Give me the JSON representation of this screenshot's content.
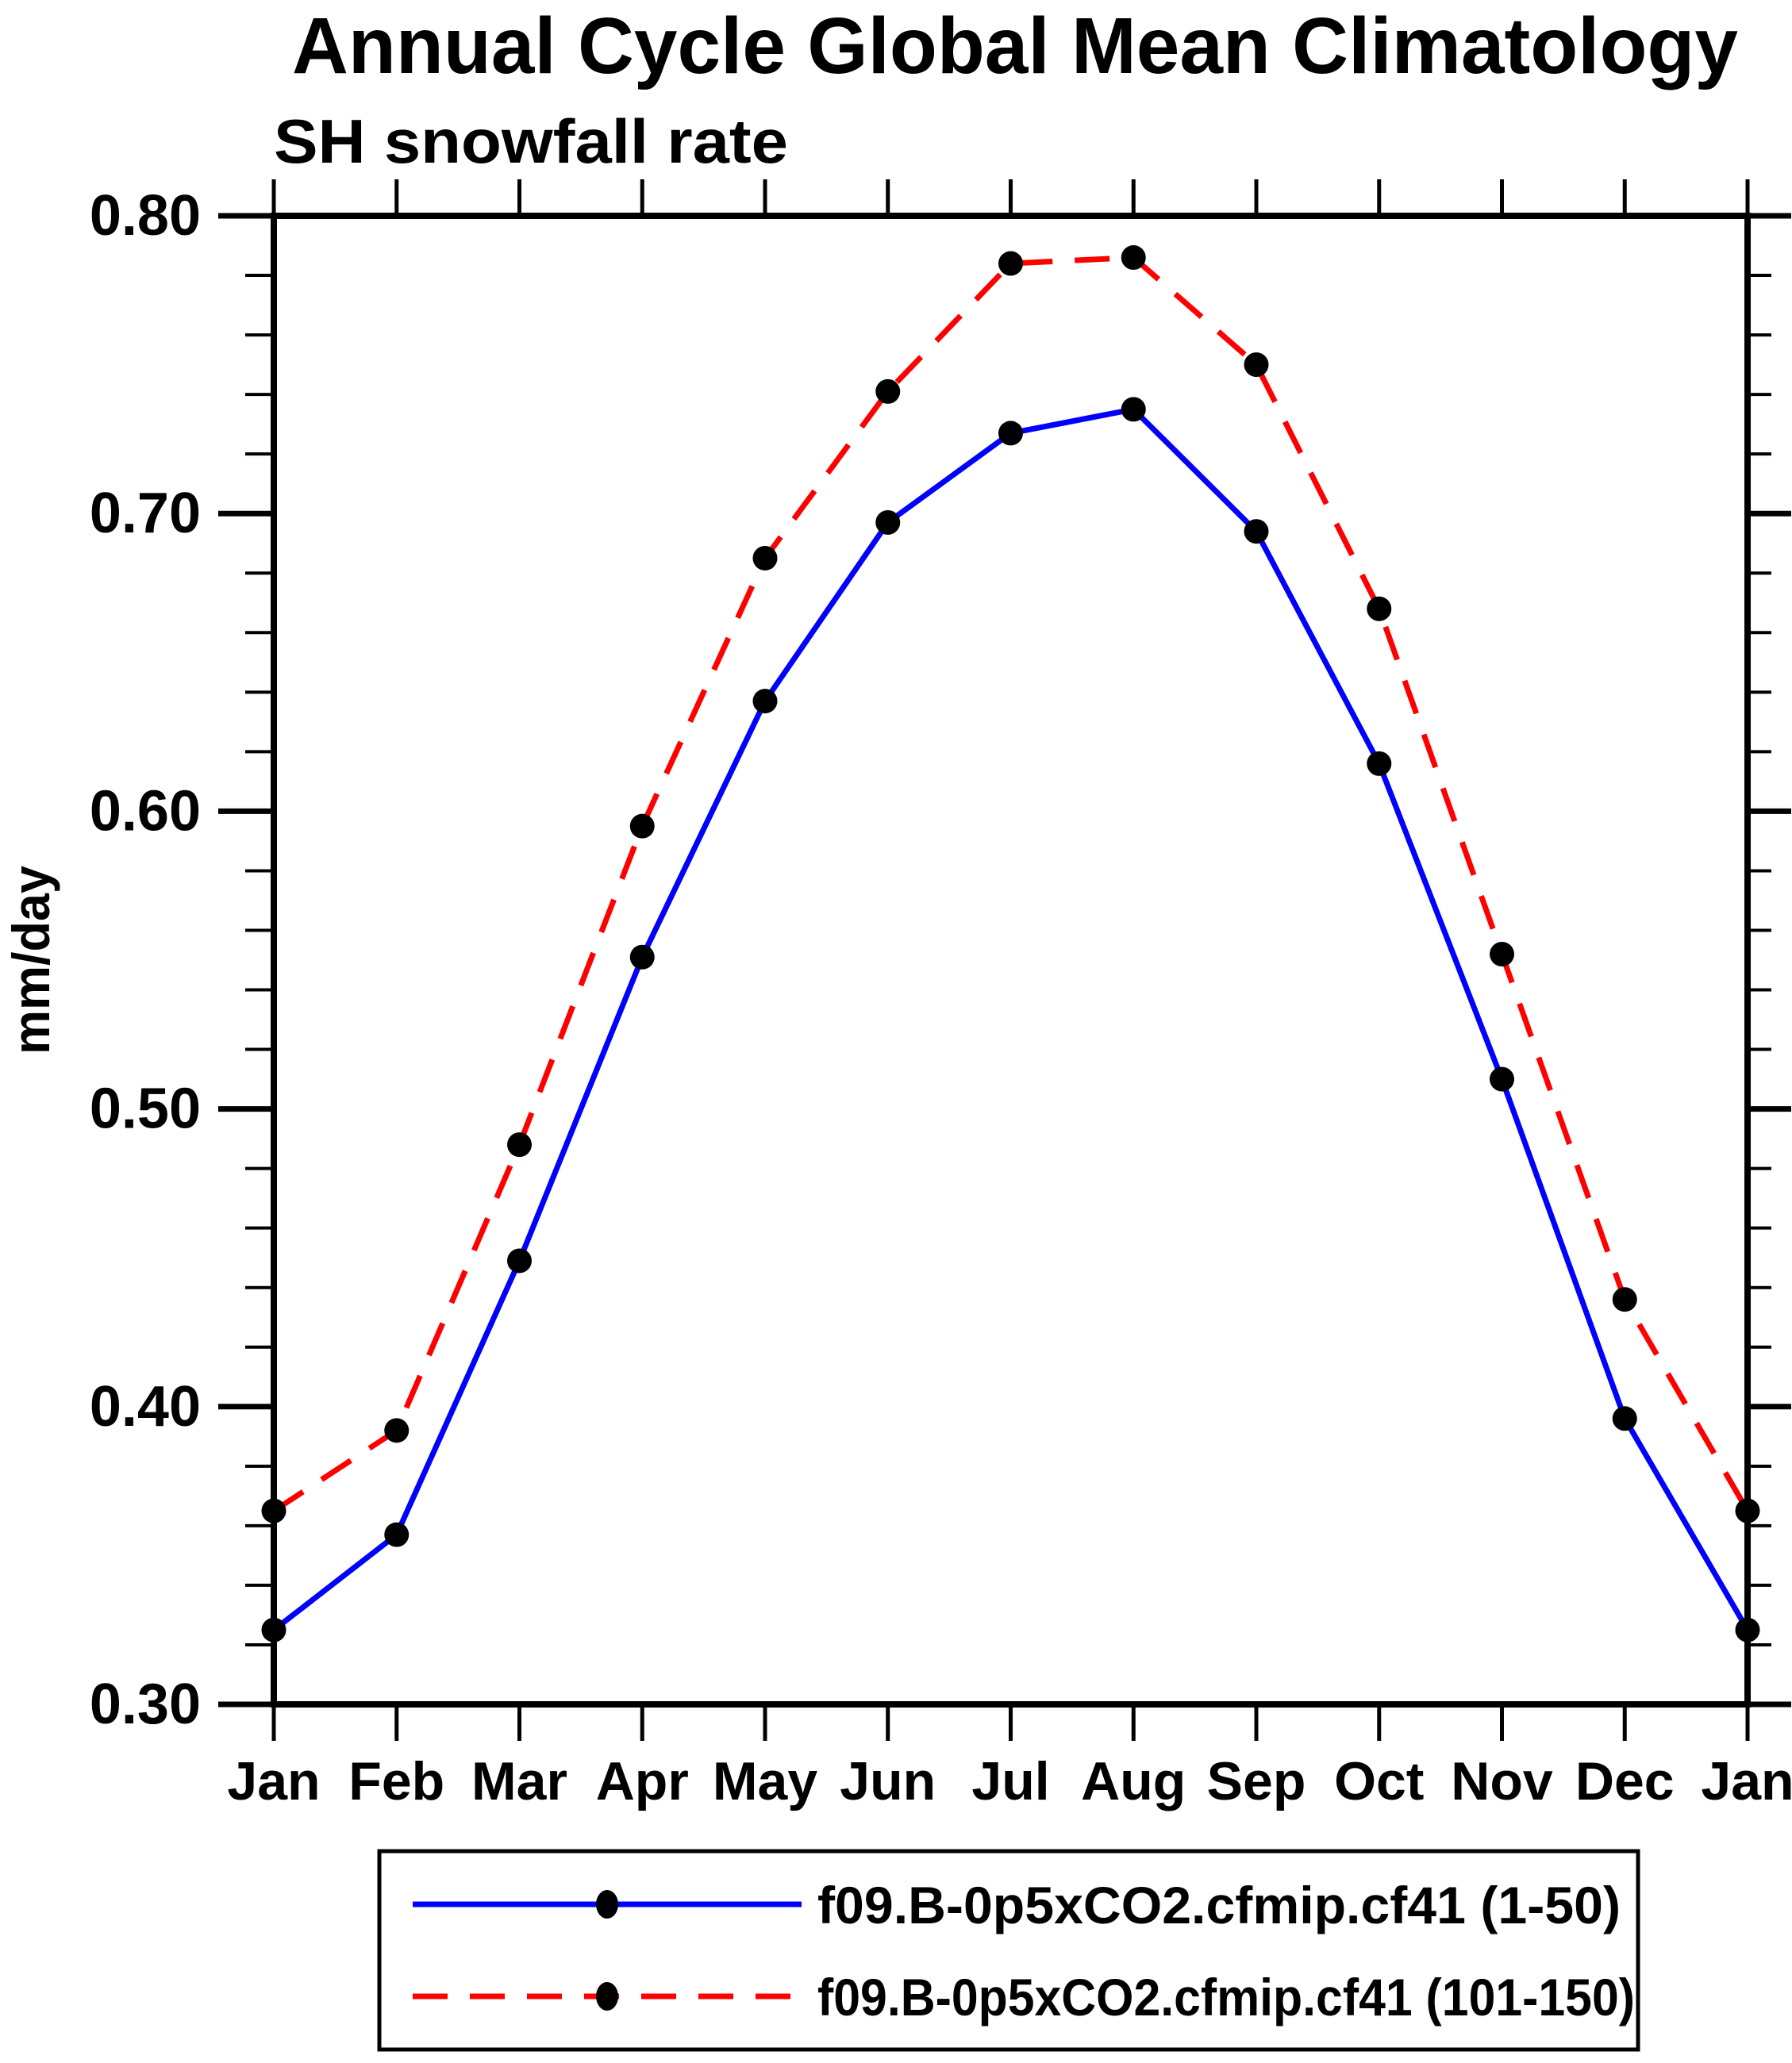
{
  "title": "Annual Cycle Global Mean Climatology",
  "subtitle": "SH snowfall rate",
  "y_axis_title": "mm/day",
  "colors": {
    "background": "#ffffff",
    "axis": "#000000",
    "marker": "#000000",
    "series1": "#0000ff",
    "series2": "#ff0000"
  },
  "chart_data": {
    "type": "line",
    "title": "Annual Cycle Global Mean Climatology",
    "subtitle": "SH snowfall rate",
    "xlabel": "",
    "ylabel": "mm/day",
    "categories": [
      "Jan",
      "Feb",
      "Mar",
      "Apr",
      "May",
      "Jun",
      "Jul",
      "Aug",
      "Sep",
      "Oct",
      "Nov",
      "Dec",
      "Jan"
    ],
    "series": [
      {
        "name": "f09.B-0p5xCO2.cfmip.cf41 (1-50)",
        "color": "#0000ff",
        "line_style": "solid",
        "marker": "filled-black-circle",
        "values": [
          0.325,
          0.357,
          0.449,
          0.551,
          0.637,
          0.697,
          0.727,
          0.735,
          0.694,
          0.616,
          0.51,
          0.396,
          0.325
        ]
      },
      {
        "name": "f09.B-0p5xCO2.cfmip.cf41 (101-150)",
        "color": "#ff0000",
        "line_style": "dashed",
        "marker": "filled-black-circle",
        "values": [
          0.365,
          0.392,
          0.488,
          0.595,
          0.685,
          0.741,
          0.784,
          0.786,
          0.75,
          0.668,
          0.552,
          0.436,
          0.365
        ]
      }
    ],
    "ylim": [
      0.3,
      0.8
    ],
    "y_major_step": 0.1,
    "y_minor_step": 0.02,
    "y_tick_labels": [
      "0.30",
      "0.40",
      "0.50",
      "0.60",
      "0.70",
      "0.80"
    ],
    "grid": false,
    "legend_position": "bottom"
  }
}
